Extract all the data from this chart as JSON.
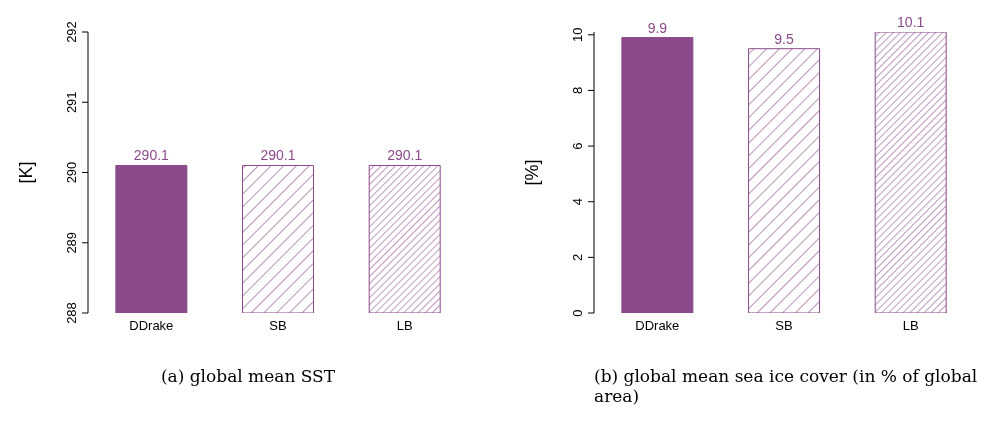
{
  "chart_data": [
    {
      "type": "bar",
      "title": "(a) global mean SST",
      "ylabel": "[K]",
      "categories": [
        "DDrake",
        "SB",
        "LB"
      ],
      "values": [
        290.1,
        290.1,
        290.1
      ],
      "colors": [
        "#8b4a8b",
        "#8b4a8b",
        "#8b4a8b"
      ],
      "ylim": [
        288,
        292
      ],
      "yticks": [
        288,
        289,
        290,
        291,
        292
      ],
      "data_labels": true,
      "grid": false,
      "legend": false
    },
    {
      "type": "bar",
      "title": "(b) global mean sea ice cover (in % of global area)",
      "ylabel": "[%]",
      "categories": [
        "DDrake",
        "SB",
        "LB"
      ],
      "values": [
        9.9,
        9.5,
        10.1
      ],
      "colors": [
        "#8b4a8b",
        "#8b4a8b",
        "#8b4a8b"
      ],
      "ylim": [
        0,
        10.1
      ],
      "yticks": [
        0,
        2,
        4,
        6,
        8,
        10
      ],
      "data_labels": true,
      "grid": false,
      "legend": false
    }
  ]
}
